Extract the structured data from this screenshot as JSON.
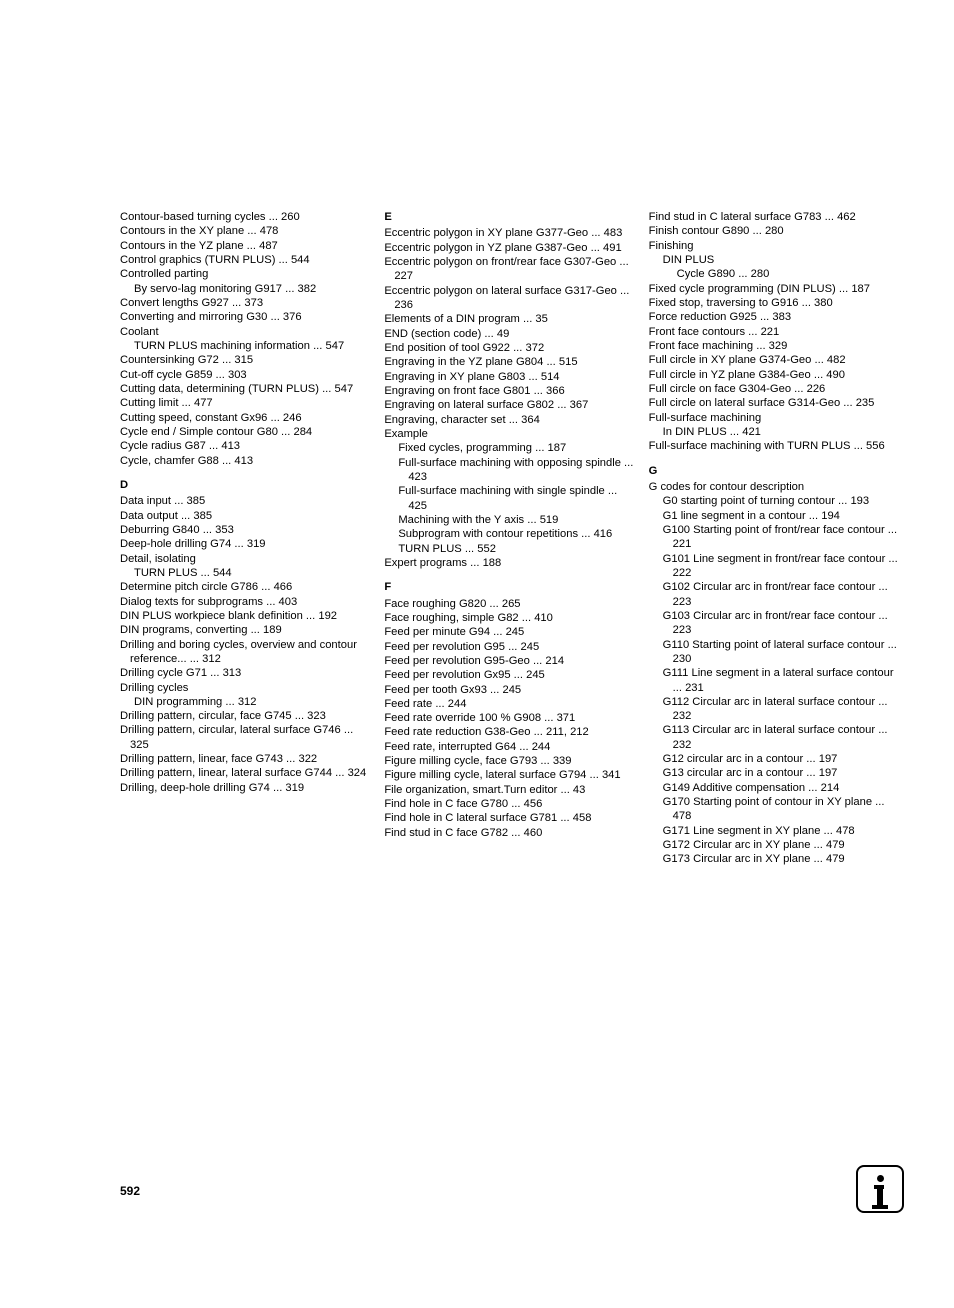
{
  "pageNumber": "592",
  "columns": [
    {
      "entries": [
        {
          "text": "Contour-based turning cycles ... 260",
          "indent": 0
        },
        {
          "text": "Contours in the XY plane ... 478",
          "indent": 0
        },
        {
          "text": "Contours in the YZ plane ... 487",
          "indent": 0
        },
        {
          "text": "Control graphics (TURN PLUS) ... 544",
          "indent": 0
        },
        {
          "text": "Controlled parting",
          "indent": 0
        },
        {
          "text": "By servo-lag monitoring G917 ... 382",
          "indent": 1
        },
        {
          "text": "Convert lengths G927 ... 373",
          "indent": 0
        },
        {
          "text": "Converting and mirroring G30 ... 376",
          "indent": 0
        },
        {
          "text": "Coolant",
          "indent": 0
        },
        {
          "text": "TURN PLUS machining information ... 547",
          "indent": 1
        },
        {
          "text": "Countersinking G72 ... 315",
          "indent": 0
        },
        {
          "text": "Cut-off cycle G859 ... 303",
          "indent": 0
        },
        {
          "text": "Cutting data, determining (TURN PLUS) ... 547",
          "indent": 0
        },
        {
          "text": "Cutting limit ... 477",
          "indent": 0
        },
        {
          "text": "Cutting speed, constant Gx96 ... 246",
          "indent": 0
        },
        {
          "text": "Cycle end / Simple contour G80 ... 284",
          "indent": 0
        },
        {
          "text": "Cycle radius G87 ... 413",
          "indent": 0
        },
        {
          "text": "Cycle, chamfer G88 ... 413",
          "indent": 0
        },
        {
          "text": "D",
          "header": true
        },
        {
          "text": "Data input ... 385",
          "indent": 0
        },
        {
          "text": "Data output ... 385",
          "indent": 0
        },
        {
          "text": "Deburring G840 ... 353",
          "indent": 0
        },
        {
          "text": "Deep-hole drilling G74 ... 319",
          "indent": 0
        },
        {
          "text": "Detail, isolating",
          "indent": 0
        },
        {
          "text": "TURN PLUS ... 544",
          "indent": 1
        },
        {
          "text": "Determine pitch circle G786 ... 466",
          "indent": 0
        },
        {
          "text": "Dialog texts for subprograms ... 403",
          "indent": 0
        },
        {
          "text": "DIN PLUS workpiece blank definition ... 192",
          "indent": 0
        },
        {
          "text": "DIN programs, converting ... 189",
          "indent": 0
        },
        {
          "text": "Drilling and boring cycles, overview and contour reference... ... 312",
          "indent": 0
        },
        {
          "text": "Drilling cycle G71 ... 313",
          "indent": 0
        },
        {
          "text": "Drilling cycles",
          "indent": 0
        },
        {
          "text": "DIN programming ... 312",
          "indent": 1
        },
        {
          "text": "Drilling pattern, circular, face G745 ... 323",
          "indent": 0
        },
        {
          "text": "Drilling pattern, circular, lateral surface G746 ... 325",
          "indent": 0
        },
        {
          "text": "Drilling pattern, linear, face G743 ... 322",
          "indent": 0
        },
        {
          "text": "Drilling pattern, linear, lateral surface G744 ... 324",
          "indent": 0
        },
        {
          "text": "Drilling, deep-hole drilling G74 ... 319",
          "indent": 0
        }
      ]
    },
    {
      "entries": [
        {
          "text": "E",
          "header": true,
          "nomargin": true
        },
        {
          "text": "Eccentric polygon in XY plane G377-Geo ... 483",
          "indent": 0
        },
        {
          "text": "Eccentric polygon in YZ plane G387-Geo ... 491",
          "indent": 0
        },
        {
          "text": "Eccentric polygon on front/rear face G307-Geo ... 227",
          "indent": 0
        },
        {
          "text": "Eccentric polygon on lateral surface G317-Geo ... 236",
          "indent": 0
        },
        {
          "text": "Elements of a DIN program ... 35",
          "indent": 0
        },
        {
          "text": "END (section code) ... 49",
          "indent": 0
        },
        {
          "text": "End position of tool G922 ... 372",
          "indent": 0
        },
        {
          "text": "Engraving in the YZ plane G804 ... 515",
          "indent": 0
        },
        {
          "text": "Engraving in XY plane G803 ... 514",
          "indent": 0
        },
        {
          "text": "Engraving on front face G801 ... 366",
          "indent": 0
        },
        {
          "text": "Engraving on lateral surface G802 ... 367",
          "indent": 0
        },
        {
          "text": "Engraving, character set ... 364",
          "indent": 0
        },
        {
          "text": "Example",
          "indent": 0
        },
        {
          "text": "Fixed cycles, programming ... 187",
          "indent": 1
        },
        {
          "text": "Full-surface machining with opposing spindle ... 423",
          "indent": 1
        },
        {
          "text": "Full-surface machining with single spindle ... 425",
          "indent": 1
        },
        {
          "text": "Machining with the Y axis ... 519",
          "indent": 1
        },
        {
          "text": "Subprogram with contour repetitions ... 416",
          "indent": 1
        },
        {
          "text": "TURN PLUS ... 552",
          "indent": 1
        },
        {
          "text": "Expert programs ... 188",
          "indent": 0
        },
        {
          "text": "F",
          "header": true
        },
        {
          "text": "Face roughing G820 ... 265",
          "indent": 0
        },
        {
          "text": "Face roughing, simple G82 ... 410",
          "indent": 0
        },
        {
          "text": "Feed per minute G94 ... 245",
          "indent": 0
        },
        {
          "text": "Feed per revolution G95 ... 245",
          "indent": 0
        },
        {
          "text": "Feed per revolution G95-Geo ... 214",
          "indent": 0
        },
        {
          "text": "Feed per revolution Gx95 ... 245",
          "indent": 0
        },
        {
          "text": "Feed per tooth Gx93 ... 245",
          "indent": 0
        },
        {
          "text": "Feed rate ... 244",
          "indent": 0
        },
        {
          "text": "Feed rate override 100 % G908 ... 371",
          "indent": 0
        },
        {
          "text": "Feed rate reduction G38-Geo ... 211, 212",
          "indent": 0
        },
        {
          "text": "Feed rate, interrupted G64 ... 244",
          "indent": 0
        },
        {
          "text": "Figure milling cycle, face G793 ... 339",
          "indent": 0
        },
        {
          "text": "Figure milling cycle, lateral surface G794 ... 341",
          "indent": 0
        },
        {
          "text": "File organization, smart.Turn editor ... 43",
          "indent": 0
        },
        {
          "text": "Find hole in C face G780 ... 456",
          "indent": 0
        },
        {
          "text": "Find hole in C lateral surface G781 ... 458",
          "indent": 0
        },
        {
          "text": "Find stud in C face G782 ... 460",
          "indent": 0
        }
      ]
    },
    {
      "entries": [
        {
          "text": "Find stud in C lateral surface G783 ... 462",
          "indent": 0
        },
        {
          "text": "Finish contour G890 ... 280",
          "indent": 0
        },
        {
          "text": "Finishing",
          "indent": 0
        },
        {
          "text": "DIN PLUS",
          "indent": 1
        },
        {
          "text": "Cycle G890 ... 280",
          "indent": 2
        },
        {
          "text": "Fixed cycle programming (DIN PLUS) ... 187",
          "indent": 0
        },
        {
          "text": "Fixed stop, traversing to G916 ... 380",
          "indent": 0
        },
        {
          "text": "Force reduction G925 ... 383",
          "indent": 0
        },
        {
          "text": "Front face contours ... 221",
          "indent": 0
        },
        {
          "text": "Front face machining ... 329",
          "indent": 0
        },
        {
          "text": "Full circle in XY plane G374-Geo ... 482",
          "indent": 0
        },
        {
          "text": "Full circle in YZ plane G384-Geo ... 490",
          "indent": 0
        },
        {
          "text": "Full circle on face G304-Geo ... 226",
          "indent": 0
        },
        {
          "text": "Full circle on lateral surface G314-Geo ... 235",
          "indent": 0
        },
        {
          "text": "Full-surface machining",
          "indent": 0
        },
        {
          "text": "In DIN PLUS ... 421",
          "indent": 1
        },
        {
          "text": "Full-surface machining with TURN PLUS ... 556",
          "indent": 0
        },
        {
          "text": "G",
          "header": true
        },
        {
          "text": "G codes for contour description",
          "indent": 0
        },
        {
          "text": "G0 starting point of turning contour ... 193",
          "indent": 1
        },
        {
          "text": "G1 line segment in a contour ... 194",
          "indent": 1
        },
        {
          "text": "G100 Starting point of front/rear face contour ... 221",
          "indent": 1
        },
        {
          "text": "G101 Line segment in front/rear face contour ... 222",
          "indent": 1
        },
        {
          "text": "G102 Circular arc in front/rear face contour ... 223",
          "indent": 1
        },
        {
          "text": "G103 Circular arc in front/rear face contour ... 223",
          "indent": 1
        },
        {
          "text": "G110 Starting point of lateral surface contour ... 230",
          "indent": 1
        },
        {
          "text": "G111 Line segment in a lateral surface contour ... 231",
          "indent": 1
        },
        {
          "text": "G112 Circular arc in lateral surface contour ... 232",
          "indent": 1
        },
        {
          "text": "G113 Circular arc in lateral surface contour ... 232",
          "indent": 1
        },
        {
          "text": "G12 circular arc in a contour ... 197",
          "indent": 1
        },
        {
          "text": "G13 circular arc in a contour ... 197",
          "indent": 1
        },
        {
          "text": "G149 Additive compensation ... 214",
          "indent": 1
        },
        {
          "text": "G170 Starting point of contour in XY plane ... 478",
          "indent": 1
        },
        {
          "text": "G171 Line segment in XY plane ... 478",
          "indent": 1
        },
        {
          "text": "G172 Circular arc in XY plane ... 479",
          "indent": 1
        },
        {
          "text": "G173 Circular arc in XY plane ... 479",
          "indent": 1
        }
      ]
    }
  ]
}
